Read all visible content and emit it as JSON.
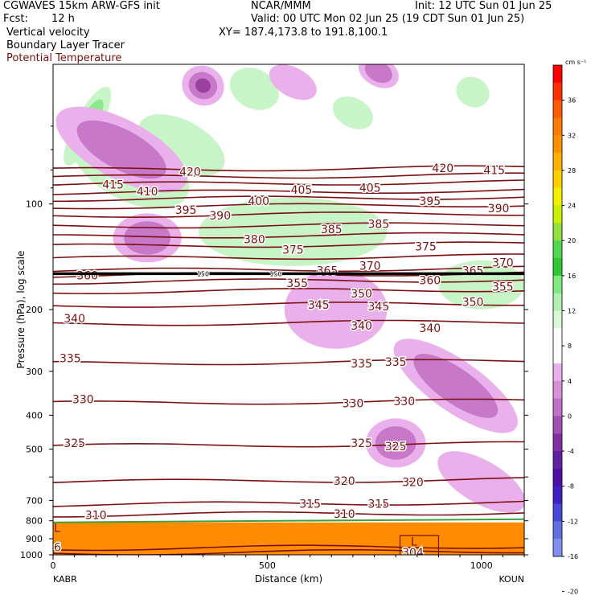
{
  "header": {
    "model": "CGWAVES 15km ARW-GFS init",
    "org": "NCAR/MMM",
    "init": "Init: 12 UTC Sun 01 Jun 25",
    "fcst_label": "Fcst:",
    "fcst_value": "12 h",
    "valid": "Valid: 00 UTC Mon 02 Jun 25 (19 CDT Sun 01 Jun 25)",
    "field1": "Vertical velocity",
    "xy": "XY= 187.4,173.8 to 191.8,100.1",
    "field2": "Boundary Layer Tracer",
    "field3": "Potential Temperature"
  },
  "colors": {
    "isentrope": "#7a1010",
    "tropopause": "#000000",
    "boundary_layer": "#ff8c00",
    "up_light": "#c8f5c8",
    "up_med": "#8ee88e",
    "up_strong": "#3ee03e",
    "down_light": "#eab0ec",
    "down_med": "#c878c8",
    "down_strong": "#9a40a0"
  },
  "chart_data": {
    "type": "heatmap",
    "title": "",
    "xlabel": "Distance (km)",
    "ylabel": "Pressure (hPa), log scale",
    "xlim": [
      0,
      1100
    ],
    "ylim": [
      1000,
      40
    ],
    "y_scale": "log",
    "x_ticks": [
      0,
      500,
      1000
    ],
    "y_ticks": [
      100,
      200,
      300,
      400,
      500,
      600,
      700,
      800,
      900,
      1000
    ],
    "y_tick_labels": [
      "100",
      "200",
      "300",
      "400",
      "500",
      "",
      "700",
      "800",
      "900",
      "1000"
    ],
    "x_endpoints": [
      "KABR",
      "KOUN"
    ],
    "colorbar": {
      "unit": "cm s⁻¹",
      "labels": [
        "36",
        "32",
        "28",
        "24",
        "20",
        "16",
        "12",
        "8",
        "4",
        "0",
        "-4",
        "-8",
        "-12",
        "-16",
        "-20"
      ],
      "colors": [
        "#ff0000",
        "#ff3000",
        "#ff5a00",
        "#ff7a00",
        "#ff9000",
        "#ffb000",
        "#ffd000",
        "#f0f000",
        "#c8f000",
        "#90e040",
        "#50d850",
        "#30c830",
        "#80e880",
        "#b0f0b0",
        "#d8f8d8",
        "#ffffff",
        "#ffffff",
        "#eab0ec",
        "#d890d8",
        "#c070c8",
        "#a050b0",
        "#8030a0",
        "#6020a0",
        "#5010a8",
        "#4020c0",
        "#4848d8",
        "#6070e0",
        "#8090f0"
      ]
    },
    "isentropes": [
      {
        "theta": 304,
        "pressure": 990
      },
      {
        "theta": 306,
        "pressure": 960
      },
      {
        "theta": 310,
        "pressure": 770
      },
      {
        "theta": 315,
        "pressure": 720
      },
      {
        "theta": 320,
        "pressure": 620
      },
      {
        "theta": 325,
        "pressure": 490
      },
      {
        "theta": 330,
        "pressure": 370
      },
      {
        "theta": 335,
        "pressure": 285
      },
      {
        "theta": 340,
        "pressure": 220
      },
      {
        "theta": 345,
        "pressure": 195
      },
      {
        "theta": 350,
        "pressure": 178
      },
      {
        "theta": 355,
        "pressure": 167
      },
      {
        "theta": 360,
        "pressure": 160
      },
      {
        "theta": 365,
        "pressure": 155
      },
      {
        "theta": 370,
        "pressure": 143
      },
      {
        "theta": 375,
        "pressure": 132
      },
      {
        "theta": 380,
        "pressure": 124
      },
      {
        "theta": 385,
        "pressure": 116
      },
      {
        "theta": 390,
        "pressure": 108
      },
      {
        "theta": 395,
        "pressure": 102
      },
      {
        "theta": 400,
        "pressure": 97
      },
      {
        "theta": 405,
        "pressure": 93
      },
      {
        "theta": 410,
        "pressure": 88
      },
      {
        "theta": 415,
        "pressure": 84
      },
      {
        "theta": 420,
        "pressure": 80
      }
    ],
    "isentrope_labels": [
      {
        "text": "304",
        "x": 840,
        "p": 985
      },
      {
        "text": "06",
        "x": 2,
        "p": 950
      },
      {
        "text": "310",
        "x": 100,
        "p": 770
      },
      {
        "text": "310",
        "x": 680,
        "p": 765
      },
      {
        "text": "315",
        "x": 600,
        "p": 715
      },
      {
        "text": "315",
        "x": 760,
        "p": 715
      },
      {
        "text": "320",
        "x": 680,
        "p": 615
      },
      {
        "text": "320",
        "x": 840,
        "p": 620
      },
      {
        "text": "325",
        "x": 50,
        "p": 480
      },
      {
        "text": "325",
        "x": 720,
        "p": 480
      },
      {
        "text": "325",
        "x": 800,
        "p": 490
      },
      {
        "text": "330",
        "x": 70,
        "p": 360
      },
      {
        "text": "330",
        "x": 700,
        "p": 370
      },
      {
        "text": "330",
        "x": 820,
        "p": 365
      },
      {
        "text": "335",
        "x": 40,
        "p": 275
      },
      {
        "text": "335",
        "x": 720,
        "p": 285
      },
      {
        "text": "335",
        "x": 800,
        "p": 282
      },
      {
        "text": "340",
        "x": 50,
        "p": 212
      },
      {
        "text": "340",
        "x": 720,
        "p": 222
      },
      {
        "text": "340",
        "x": 880,
        "p": 226
      },
      {
        "text": "345",
        "x": 620,
        "p": 194
      },
      {
        "text": "345",
        "x": 760,
        "p": 196
      },
      {
        "text": "350",
        "x": 720,
        "p": 180
      },
      {
        "text": "350",
        "x": 980,
        "p": 190
      },
      {
        "text": "355",
        "x": 570,
        "p": 168
      },
      {
        "text": "355",
        "x": 1050,
        "p": 172
      },
      {
        "text": "360",
        "x": 80,
        "p": 160
      },
      {
        "text": "360",
        "x": 880,
        "p": 165
      },
      {
        "text": "365",
        "x": 640,
        "p": 155
      },
      {
        "text": "365",
        "x": 980,
        "p": 155
      },
      {
        "text": "370",
        "x": 740,
        "p": 150
      },
      {
        "text": "370",
        "x": 1050,
        "p": 147
      },
      {
        "text": "375",
        "x": 560,
        "p": 135
      },
      {
        "text": "375",
        "x": 870,
        "p": 132
      },
      {
        "text": "380",
        "x": 470,
        "p": 126
      },
      {
        "text": "385",
        "x": 650,
        "p": 118
      },
      {
        "text": "385",
        "x": 760,
        "p": 114
      },
      {
        "text": "390",
        "x": 390,
        "p": 108
      },
      {
        "text": "390",
        "x": 1040,
        "p": 103
      },
      {
        "text": "395",
        "x": 310,
        "p": 104
      },
      {
        "text": "395",
        "x": 880,
        "p": 98
      },
      {
        "text": "400",
        "x": 480,
        "p": 98
      },
      {
        "text": "405",
        "x": 580,
        "p": 91
      },
      {
        "text": "405",
        "x": 740,
        "p": 90
      },
      {
        "text": "410",
        "x": 220,
        "p": 92
      },
      {
        "text": "415",
        "x": 140,
        "p": 88
      },
      {
        "text": "415",
        "x": 1030,
        "p": 80
      },
      {
        "text": "420",
        "x": 320,
        "p": 81
      },
      {
        "text": "420",
        "x": 910,
        "p": 79
      }
    ],
    "tropopause_pressure": 158,
    "tropopause_labels": [
      {
        "text": "150",
        "x": 350
      },
      {
        "text": "150",
        "x": 520
      }
    ],
    "boundary_layer": {
      "top_pressure": 800,
      "bottom_pressure": 1000,
      "surface_low_label": "L"
    },
    "upward_features": [
      {
        "x": 80,
        "p": 60,
        "rx": 30,
        "rp": 0.09,
        "level": 3,
        "angle": 28
      },
      {
        "x": 180,
        "p": 78,
        "rx": 150,
        "rp": 0.07,
        "level": 1,
        "angle": 28
      },
      {
        "x": 300,
        "p": 68,
        "rx": 110,
        "rp": 0.05,
        "level": 1,
        "angle": 28
      },
      {
        "x": 470,
        "p": 47,
        "rx": 60,
        "rp": 0.04,
        "level": 1,
        "angle": 28
      },
      {
        "x": 700,
        "p": 55,
        "rx": 50,
        "rp": 0.03,
        "level": 1,
        "angle": 28
      },
      {
        "x": 980,
        "p": 48,
        "rx": 40,
        "rp": 0.03,
        "level": 1,
        "angle": 28
      },
      {
        "x": 560,
        "p": 120,
        "rx": 220,
        "rp": 0.07,
        "level": 1,
        "angle": 0
      },
      {
        "x": 1000,
        "p": 170,
        "rx": 100,
        "rp": 0.05,
        "level": 1,
        "angle": 0
      }
    ],
    "downward_features": [
      {
        "x": 350,
        "p": 46,
        "rx": 50,
        "rp": 0.04,
        "level": 3,
        "angle": 28
      },
      {
        "x": 160,
        "p": 70,
        "rx": 170,
        "rp": 0.06,
        "level": 2,
        "angle": 28
      },
      {
        "x": 560,
        "p": 45,
        "rx": 60,
        "rp": 0.03,
        "level": 1,
        "angle": 28
      },
      {
        "x": 760,
        "p": 42,
        "rx": 50,
        "rp": 0.03,
        "level": 2,
        "angle": 28
      },
      {
        "x": 220,
        "p": 125,
        "rx": 80,
        "rp": 0.05,
        "level": 2,
        "angle": 0
      },
      {
        "x": 660,
        "p": 200,
        "rx": 120,
        "rp": 0.08,
        "level": 1,
        "angle": 0
      },
      {
        "x": 940,
        "p": 330,
        "rx": 60,
        "rp": 0.15,
        "level": 2,
        "angle": -55
      },
      {
        "x": 800,
        "p": 480,
        "rx": 70,
        "rp": 0.05,
        "level": 2,
        "angle": 0
      },
      {
        "x": 1000,
        "p": 620,
        "rx": 50,
        "rp": 0.1,
        "level": 1,
        "angle": -60
      }
    ]
  }
}
